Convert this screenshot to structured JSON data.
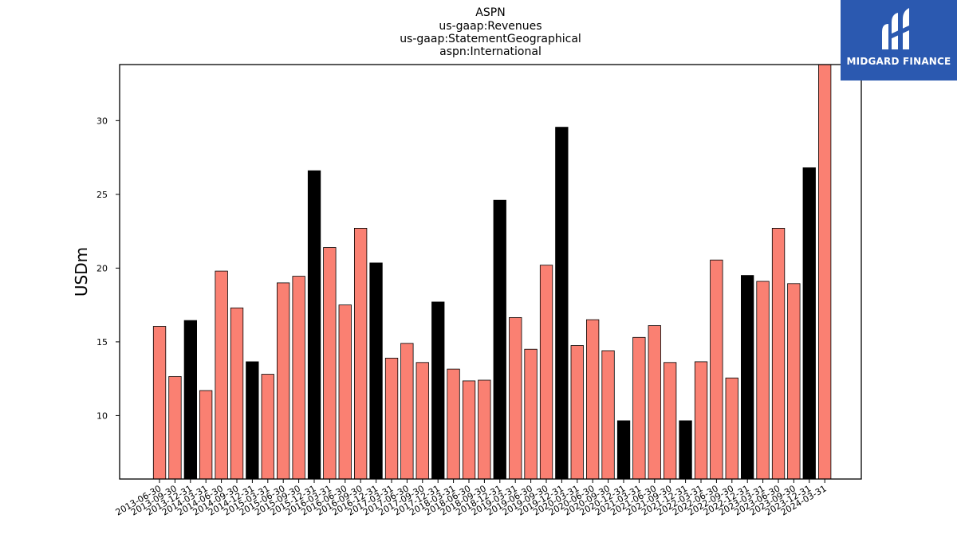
{
  "chart_data": {
    "type": "bar",
    "title_lines": [
      "ASPN",
      "us-gaap:Revenues",
      "us-gaap:StatementGeographical",
      "aspn:International"
    ],
    "xlabel": "",
    "ylabel": "USDm",
    "ylim": [
      5.7,
      33.8
    ],
    "yticks": [
      10,
      15,
      20,
      25,
      30
    ],
    "grid": false,
    "colors": {
      "quarter": "#fa8072",
      "year_end": "#000000",
      "edge": "#000000"
    },
    "categories": [
      "2013-06-30",
      "2013-09-30",
      "2013-12-31",
      "2014-03-31",
      "2014-06-30",
      "2014-09-30",
      "2014-12-31",
      "2015-03-31",
      "2015-06-30",
      "2015-09-30",
      "2015-12-31",
      "2016-03-31",
      "2016-06-30",
      "2016-09-30",
      "2016-12-31",
      "2017-03-31",
      "2017-06-30",
      "2017-09-30",
      "2017-12-31",
      "2018-03-31",
      "2018-06-30",
      "2018-09-30",
      "2018-12-31",
      "2019-03-31",
      "2019-06-30",
      "2019-09-30",
      "2019-12-31",
      "2020-03-31",
      "2020-06-30",
      "2020-09-30",
      "2020-12-31",
      "2021-03-31",
      "2021-06-30",
      "2021-09-30",
      "2021-12-31",
      "2022-03-31",
      "2022-06-30",
      "2022-09-30",
      "2022-12-31",
      "2023-03-31",
      "2023-06-30",
      "2023-09-30",
      "2023-12-31",
      "2024-03-31"
    ],
    "values": [
      16.05,
      12.65,
      16.45,
      11.7,
      19.8,
      17.3,
      13.65,
      12.8,
      19.0,
      19.45,
      26.6,
      21.4,
      17.5,
      22.7,
      20.35,
      13.9,
      14.9,
      13.6,
      17.7,
      13.15,
      12.35,
      12.4,
      24.6,
      16.65,
      14.5,
      20.2,
      29.55,
      14.75,
      16.5,
      14.4,
      9.65,
      15.3,
      16.1,
      13.6,
      9.65,
      13.65,
      20.55,
      12.55,
      19.5,
      19.1,
      22.7,
      18.95,
      26.8,
      33.8
    ],
    "highlight": [
      false,
      false,
      true,
      false,
      false,
      false,
      true,
      false,
      false,
      false,
      true,
      false,
      false,
      false,
      true,
      false,
      false,
      false,
      true,
      false,
      false,
      false,
      true,
      false,
      false,
      false,
      true,
      false,
      false,
      false,
      true,
      false,
      false,
      false,
      true,
      false,
      false,
      false,
      true,
      false,
      false,
      false,
      true,
      false
    ]
  },
  "logo": {
    "brand": "MIDGARD FINANCE"
  }
}
